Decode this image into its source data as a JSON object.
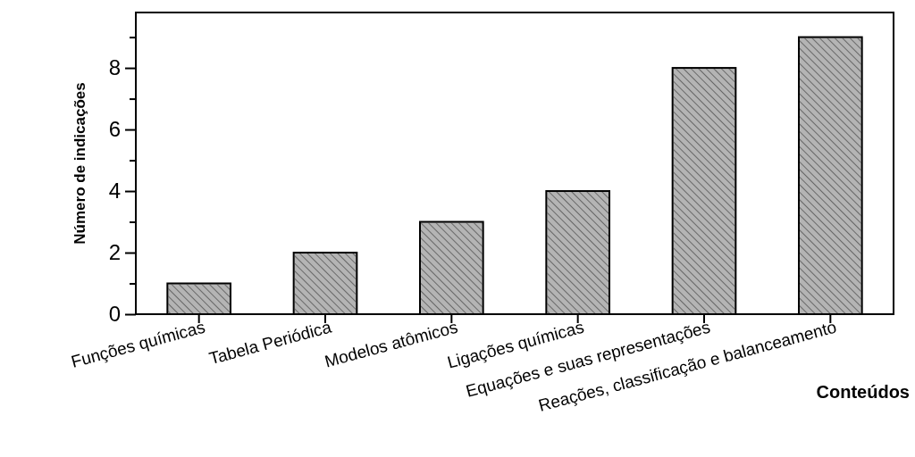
{
  "chart_data": {
    "type": "bar",
    "xlabel": "Conteúdos",
    "ylabel": "Número de indicações",
    "categories": [
      "Funções químicas",
      "Tabela Periódica",
      "Modelos atômicos",
      "Ligações químicas",
      "Equações e suas representações",
      "Reações, classificação e balanceamento"
    ],
    "values": [
      1,
      2,
      3,
      4,
      8,
      9
    ],
    "color": "#b4b4b4",
    "ylim": [
      0,
      9.8
    ],
    "yticks": [
      0,
      {
        "value": 1,
        "label": null
      },
      2,
      {
        "value": 3,
        "label": null
      },
      4,
      {
        "value": 5,
        "label": null
      },
      6,
      {
        "value": 7,
        "label": null
      },
      8,
      {
        "value": 9,
        "label": null
      }
    ],
    "grid": false
  }
}
